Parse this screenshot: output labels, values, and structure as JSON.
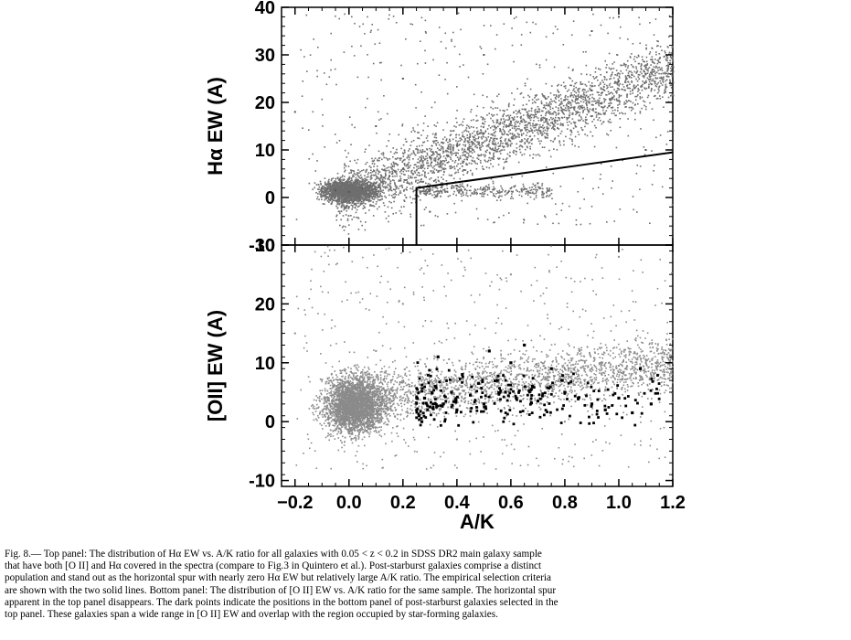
{
  "chart_data": [
    {
      "type": "scatter",
      "panel": "top",
      "xlabel": "A/K",
      "ylabel": "Hα EW (A)",
      "xlim": [
        -0.25,
        1.2
      ],
      "ylim": [
        -10,
        40
      ],
      "yticks": [
        "-10",
        "0",
        "10",
        "20",
        "30",
        "40"
      ],
      "series": [
        {
          "values": [
            [
              -0.1,
              2.0
            ],
            [
              -0.05,
              1.5
            ],
            [
              0.0,
              1.2
            ],
            [
              0.05,
              2.0
            ],
            [
              0.1,
              3.0
            ],
            [
              0.15,
              4.5
            ],
            [
              0.2,
              6.0
            ],
            [
              0.3,
              8.5
            ],
            [
              0.4,
              11.0
            ],
            [
              0.5,
              13.5
            ],
            [
              0.6,
              16.0
            ],
            [
              0.7,
              18.0
            ],
            [
              0.8,
              20.5
            ],
            [
              0.9,
              22.5
            ],
            [
              1.0,
              24.5
            ],
            [
              1.1,
              26.0
            ],
            [
              1.2,
              27.5
            ],
            [
              0.3,
              1.5
            ],
            [
              0.4,
              2.5
            ],
            [
              0.5,
              2.0
            ],
            [
              0.7,
              3.0
            ],
            [
              0.1,
              15.0
            ],
            [
              0.2,
              25.0
            ],
            [
              0.9,
              35.0
            ],
            [
              1.0,
              38.0
            ],
            [
              0.0,
              -2.0
            ],
            [
              0.3,
              -3.0
            ],
            [
              -0.2,
              18.0
            ],
            [
              0.5,
              30.0
            ],
            [
              1.1,
              10.0
            ]
          ]
        }
      ],
      "selection_lines": [
        {
          "x": [
            0.25,
            0.25,
            1.2
          ],
          "y": [
            -10,
            2,
            9.5
          ]
        }
      ]
    },
    {
      "type": "scatter",
      "panel": "bottom",
      "xlabel": "A/K",
      "ylabel": "[OII] EW (A)",
      "xlim": [
        -0.25,
        1.2
      ],
      "ylim": [
        -11,
        30
      ],
      "xticks": [
        "−0.2",
        "0.0",
        "0.2",
        "0.4",
        "0.6",
        "0.8",
        "1.0",
        "1.2"
      ],
      "yticks": [
        "-10",
        "0",
        "10",
        "20",
        "30"
      ],
      "series": [
        {
          "color": "#8a8a8a",
          "values": [
            [
              -0.05,
              3.0
            ],
            [
              0.0,
              4.0
            ],
            [
              0.05,
              5.0
            ],
            [
              0.1,
              4.5
            ],
            [
              0.15,
              5.0
            ],
            [
              0.2,
              5.5
            ],
            [
              0.3,
              6.0
            ],
            [
              0.4,
              7.0
            ],
            [
              0.5,
              7.5
            ],
            [
              0.6,
              8.0
            ],
            [
              0.7,
              8.5
            ],
            [
              0.8,
              9.0
            ],
            [
              0.9,
              9.0
            ],
            [
              1.0,
              9.5
            ],
            [
              1.1,
              10.0
            ],
            [
              1.2,
              10.0
            ],
            [
              0.0,
              -2.0
            ],
            [
              0.1,
              12.0
            ],
            [
              0.2,
              20.0
            ],
            [
              0.6,
              25.0
            ],
            [
              1.0,
              28.0
            ],
            [
              0.4,
              -3.0
            ],
            [
              0.8,
              0.0
            ],
            [
              -0.2,
              15.0
            ]
          ]
        },
        {
          "color": "#000000",
          "values": [
            [
              0.26,
              1.0
            ],
            [
              0.28,
              4.0
            ],
            [
              0.3,
              2.5
            ],
            [
              0.32,
              6.0
            ],
            [
              0.35,
              3.0
            ],
            [
              0.38,
              5.0
            ],
            [
              0.4,
              2.0
            ],
            [
              0.42,
              8.0
            ],
            [
              0.45,
              4.5
            ],
            [
              0.48,
              6.5
            ],
            [
              0.5,
              3.0
            ],
            [
              0.55,
              7.0
            ],
            [
              0.58,
              5.0
            ],
            [
              0.6,
              10.0
            ],
            [
              0.62,
              4.0
            ],
            [
              0.65,
              13.0
            ],
            [
              0.68,
              6.0
            ],
            [
              0.7,
              3.5
            ],
            [
              0.75,
              9.0
            ],
            [
              0.8,
              5.0
            ],
            [
              0.85,
              4.0
            ],
            [
              0.9,
              3.0
            ],
            [
              0.95,
              2.0
            ],
            [
              1.0,
              4.0
            ],
            [
              1.05,
              1.5
            ],
            [
              1.08,
              9.0
            ],
            [
              1.12,
              3.0
            ],
            [
              0.33,
              11.0
            ],
            [
              0.27,
              0.0
            ],
            [
              0.52,
              12.0
            ]
          ]
        }
      ]
    }
  ],
  "caption": {
    "lines": [
      "Fig. 8.— Top panel: The distribution of Hα EW vs. A/K ratio for all galaxies with 0.05 < z < 0.2 in SDSS DR2 main galaxy sample",
      "that have both [O II] and Hα covered in the spectra (compare to Fig.3 in Quintero et al.). Post-starburst galaxies comprise a distinct",
      "population and stand out as the horizontal spur with nearly zero Hα EW but relatively large A/K ratio. The empirical selection criteria",
      "are shown with the two solid lines. Bottom panel: The distribution of [O II] EW vs. A/K ratio for the same sample. The horizontal spur",
      "apparent in the top panel disappears. The dark points indicate the positions in the bottom panel of post-starburst galaxies selected in the",
      "top panel. These galaxies span a wide range in [O II] EW and overlap with the region occupied by star-forming galaxies."
    ]
  }
}
